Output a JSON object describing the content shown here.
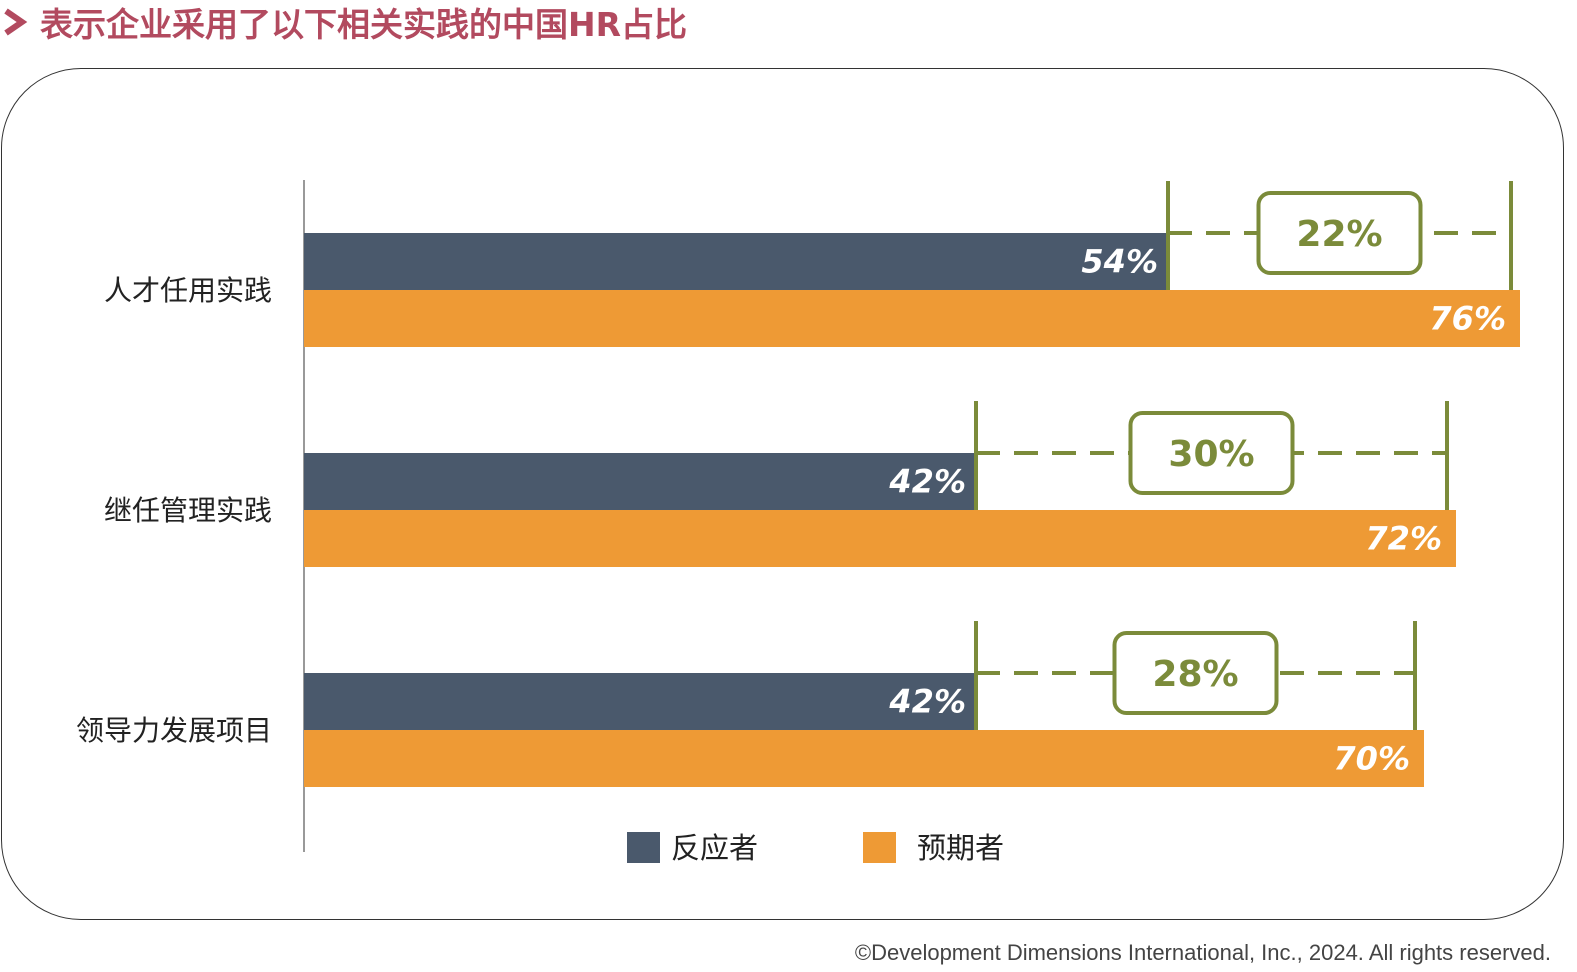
{
  "title": "表示企业采用了以下相关实践的中国HR占比",
  "footer": "©Development Dimensions International, Inc., 2024. All rights reserved.",
  "colors": {
    "title": "#b24a5f",
    "responder": "#4a596c",
    "anticipator": "#ee9a35",
    "gap": "#7b8b3a"
  },
  "chart_data": {
    "type": "bar",
    "orientation": "horizontal",
    "categories": [
      "人才任用实践",
      "继任管理实践",
      "领导力发展项目"
    ],
    "series": [
      {
        "name": "反应者",
        "values": [
          54,
          42,
          42
        ],
        "labels": [
          "54%",
          "42%",
          "42%"
        ]
      },
      {
        "name": "预期者",
        "values": [
          76,
          72,
          70
        ],
        "labels": [
          "76%",
          "72%",
          "70%"
        ]
      }
    ],
    "gaps": [
      {
        "value": 22,
        "label": "22%"
      },
      {
        "value": 30,
        "label": "30%"
      },
      {
        "value": 28,
        "label": "28%"
      }
    ],
    "unit": "%",
    "xlim": [
      0,
      76
    ],
    "legend_position": "bottom-center",
    "grid": false
  }
}
